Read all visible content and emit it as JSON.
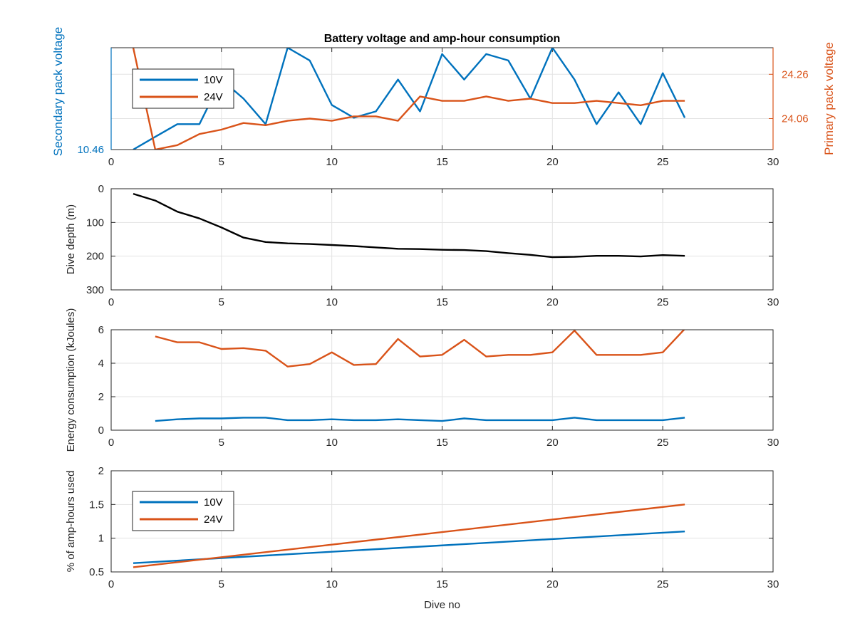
{
  "chart_data": [
    {
      "type": "line",
      "title": "Battery voltage and amp-hour consumption",
      "xlabel": "",
      "ylabel_left": "Secondary pack voltage",
      "ylabel_right": "Primary pack voltage",
      "xlim": [
        0,
        30
      ],
      "xticks": [
        "0",
        "5",
        "10",
        "15",
        "20",
        "25",
        "30"
      ],
      "ylim_left": [
        10.46,
        10.62
      ],
      "yticks_left": [
        {
          "value": 10.46,
          "label": "10.46"
        }
      ],
      "ylim_right": [
        23.92,
        24.38
      ],
      "yticks_right": [
        {
          "value": 24.06,
          "label": "24.06"
        },
        {
          "value": 24.26,
          "label": "24.26"
        }
      ],
      "grid": true,
      "legend": {
        "position": "top-left",
        "entries": [
          "10V",
          "24V"
        ]
      },
      "colors": {
        "10V": "#0072BD",
        "24V": "#D95319"
      },
      "series": [
        {
          "name": "10V",
          "axis": "left",
          "x": [
            1,
            2,
            3,
            4,
            5,
            6,
            7,
            8,
            9,
            10,
            11,
            12,
            13,
            14,
            15,
            16,
            17,
            18,
            19,
            20,
            21,
            22,
            23,
            24,
            25,
            26
          ],
          "values": [
            10.46,
            10.48,
            10.5,
            10.5,
            10.57,
            10.54,
            10.5,
            10.62,
            10.6,
            10.53,
            10.51,
            10.52,
            10.57,
            10.52,
            10.61,
            10.57,
            10.61,
            10.6,
            10.54,
            10.62,
            10.57,
            10.5,
            10.55,
            10.5,
            10.58,
            10.51
          ]
        },
        {
          "name": "24V",
          "axis": "right",
          "x": [
            1,
            2,
            3,
            4,
            5,
            6,
            7,
            8,
            9,
            10,
            11,
            12,
            13,
            14,
            15,
            16,
            17,
            18,
            19,
            20,
            21,
            22,
            23,
            24,
            25,
            26
          ],
          "values": [
            24.38,
            23.92,
            23.94,
            23.99,
            24.01,
            24.04,
            24.03,
            24.05,
            24.06,
            24.05,
            24.07,
            24.07,
            24.05,
            24.16,
            24.14,
            24.14,
            24.16,
            24.14,
            24.15,
            24.13,
            24.13,
            24.14,
            24.13,
            24.12,
            24.14,
            24.14
          ]
        }
      ]
    },
    {
      "type": "line",
      "title": "",
      "xlabel": "",
      "ylabel": "Dive depth (m)",
      "xlim": [
        0,
        30
      ],
      "xticks": [
        "0",
        "5",
        "10",
        "15",
        "20",
        "25",
        "30"
      ],
      "ylim": [
        0,
        300
      ],
      "yreversed": true,
      "yticks": [
        "0",
        "100",
        "200",
        "300"
      ],
      "grid": true,
      "colors": {
        "depth": "#000000"
      },
      "series": [
        {
          "x": [
            1,
            2,
            3,
            4,
            5,
            6,
            7,
            8,
            9,
            10,
            11,
            12,
            13,
            14,
            15,
            16,
            17,
            18,
            19,
            20,
            21,
            22,
            23,
            24,
            25,
            26
          ],
          "values": [
            15,
            35,
            68,
            88,
            115,
            145,
            158,
            162,
            164,
            167,
            170,
            174,
            178,
            179,
            181,
            182,
            185,
            191,
            196,
            203,
            202,
            199,
            199,
            201,
            197,
            199
          ]
        }
      ]
    },
    {
      "type": "line",
      "title": "",
      "xlabel": "",
      "ylabel": "Energy consumption (kJoules)",
      "xlim": [
        0,
        30
      ],
      "xticks": [
        "0",
        "5",
        "10",
        "15",
        "20",
        "25",
        "30"
      ],
      "ylim": [
        0,
        6
      ],
      "yticks": [
        "0",
        "2",
        "4",
        "6"
      ],
      "grid": true,
      "colors": {
        "10V": "#0072BD",
        "24V": "#D95319"
      },
      "series": [
        {
          "name": "10V",
          "x": [
            2,
            3,
            4,
            5,
            6,
            7,
            8,
            9,
            10,
            11,
            12,
            13,
            14,
            15,
            16,
            17,
            18,
            19,
            20,
            21,
            22,
            23,
            24,
            25,
            26
          ],
          "values": [
            0.55,
            0.65,
            0.7,
            0.7,
            0.75,
            0.75,
            0.6,
            0.6,
            0.65,
            0.6,
            0.6,
            0.65,
            0.6,
            0.55,
            0.7,
            0.6,
            0.6,
            0.6,
            0.6,
            0.75,
            0.6,
            0.6,
            0.6,
            0.6,
            0.75
          ]
        },
        {
          "name": "24V",
          "x": [
            2,
            3,
            4,
            5,
            6,
            7,
            8,
            9,
            10,
            11,
            12,
            13,
            14,
            15,
            16,
            17,
            18,
            19,
            20,
            21,
            22,
            23,
            24,
            25,
            26
          ],
          "values": [
            5.6,
            5.25,
            5.25,
            4.85,
            4.9,
            4.75,
            3.8,
            3.95,
            4.65,
            3.9,
            3.95,
            5.45,
            4.4,
            4.5,
            5.4,
            4.4,
            4.5,
            4.5,
            4.65,
            5.95,
            4.5,
            4.5,
            4.5,
            4.65,
            6.05
          ]
        }
      ]
    },
    {
      "type": "line",
      "title": "",
      "xlabel": "Dive no",
      "ylabel": "% of amp-hours used",
      "xlim": [
        0,
        30
      ],
      "xticks": [
        "0",
        "5",
        "10",
        "15",
        "20",
        "25",
        "30"
      ],
      "ylim": [
        0.5,
        2
      ],
      "yticks": [
        "0.5",
        "1",
        "1.5",
        "2"
      ],
      "grid": true,
      "legend": {
        "position": "top-left",
        "entries": [
          "10V",
          "24V"
        ]
      },
      "colors": {
        "10V": "#0072BD",
        "24V": "#D95319"
      },
      "series": [
        {
          "name": "10V",
          "x": [
            1,
            26
          ],
          "values": [
            0.63,
            1.1
          ]
        },
        {
          "name": "24V",
          "x": [
            1,
            26
          ],
          "values": [
            0.57,
            1.5
          ]
        }
      ]
    }
  ]
}
